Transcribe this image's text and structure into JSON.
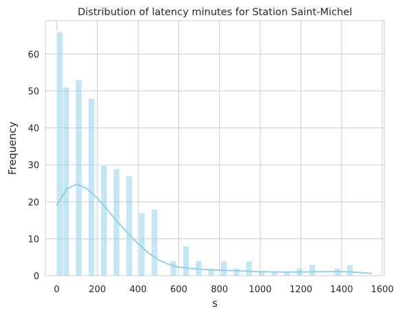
{
  "chart_data": {
    "type": "bar",
    "title": "Distribution of latency minutes for Station Saint-Michel",
    "xlabel": "s",
    "ylabel": "Frequency",
    "xlim": [
      -55,
      1610
    ],
    "ylim": [
      0,
      69
    ],
    "x_ticks": [
      0,
      200,
      400,
      600,
      800,
      1000,
      1200,
      1400,
      1600
    ],
    "y_ticks": [
      0,
      10,
      20,
      30,
      40,
      50,
      60
    ],
    "grid": true,
    "bar_color": "#87ceeb",
    "bins": {
      "edges": [
        0,
        31,
        62,
        93,
        124,
        155,
        186,
        217,
        248,
        279,
        310,
        341,
        372,
        403,
        434,
        465,
        496,
        527,
        558,
        589,
        620,
        651,
        682,
        713,
        744,
        775,
        806,
        837,
        868,
        899,
        930,
        961,
        992,
        1023,
        1054,
        1085,
        1116,
        1147,
        1178,
        1209,
        1240,
        1271,
        1302,
        1333,
        1364,
        1395,
        1426,
        1457,
        1488,
        1519,
        1550
      ],
      "counts": [
        66,
        51,
        0,
        53,
        0,
        48,
        0,
        30,
        0,
        29,
        0,
        27,
        0,
        17,
        0,
        18,
        0,
        0,
        4,
        0,
        8,
        0,
        4,
        0,
        2,
        0,
        4,
        0,
        2,
        0,
        4,
        0,
        1,
        0,
        1,
        0,
        1,
        0,
        2,
        0,
        3,
        0,
        0,
        0,
        2,
        0,
        3,
        0,
        0,
        0
      ]
    },
    "kde": {
      "x": [
        0,
        50,
        100,
        150,
        200,
        250,
        300,
        350,
        400,
        450,
        500,
        550,
        600,
        650,
        700,
        750,
        800,
        900,
        1000,
        1100,
        1200,
        1300,
        1400,
        1450,
        1500,
        1550
      ],
      "y": [
        19,
        23.5,
        24.8,
        23.5,
        21.0,
        17.8,
        14.5,
        11.5,
        8.7,
        6.2,
        4.3,
        3.1,
        2.3,
        2.0,
        1.8,
        1.6,
        1.5,
        1.3,
        1.1,
        1.0,
        1.0,
        1.1,
        1.1,
        1.0,
        0.8,
        0.6
      ]
    }
  }
}
